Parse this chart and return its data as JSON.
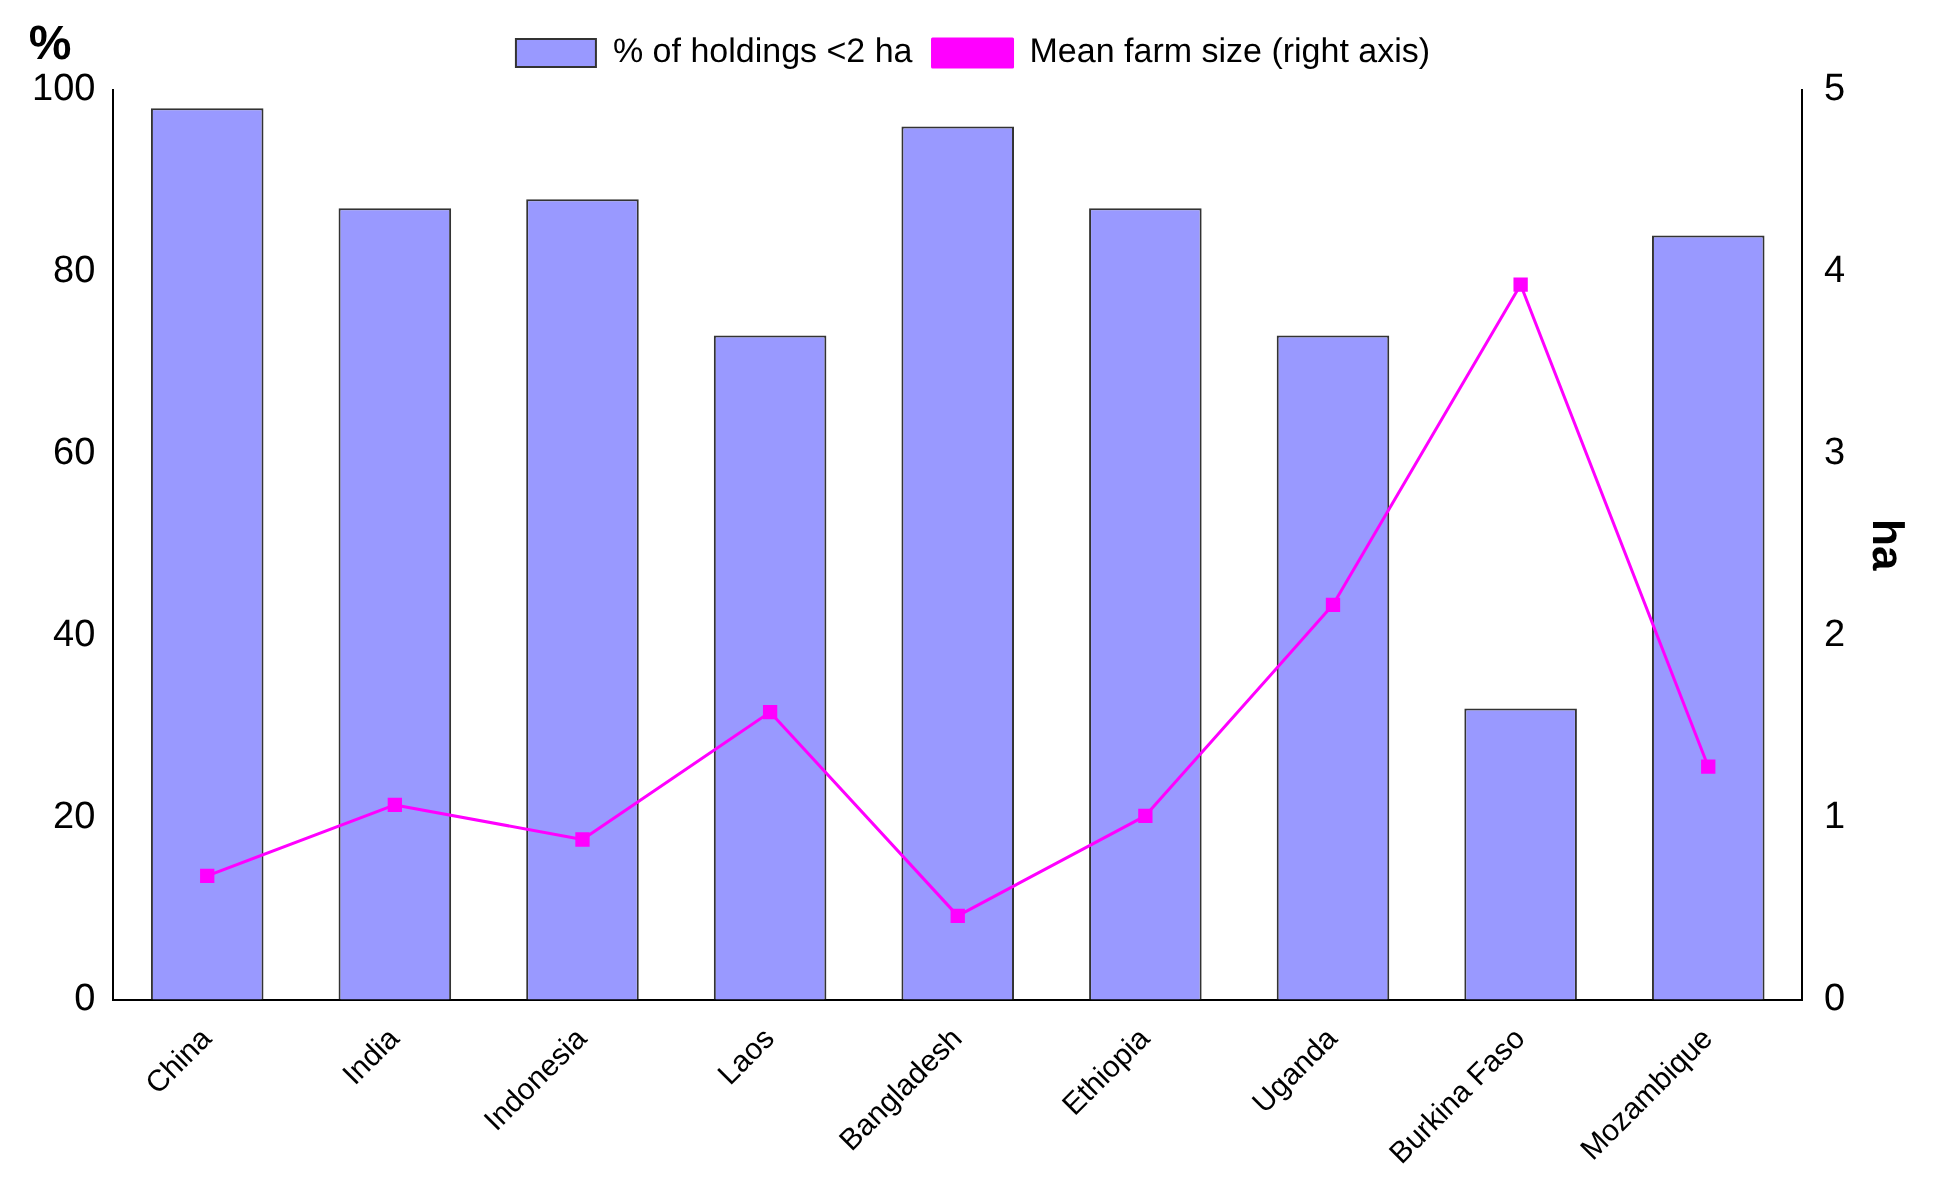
{
  "chart_data": {
    "type": "bar",
    "ylabel": "%",
    "y2label": "ha",
    "categories": [
      "China",
      "India",
      "Indonesia",
      "Laos",
      "Bangladesh",
      "Ethiopia",
      "Uganda",
      "Burkina Faso",
      "Mozambique"
    ],
    "series": [
      {
        "name": "% of holdings <2 ha",
        "color": "#9999ff",
        "values": [
          98,
          87,
          88,
          73,
          96,
          87,
          73,
          32,
          84
        ]
      },
      {
        "name": "Mean farm size (right axis)",
        "type": "line",
        "axis": "y2",
        "color": "#ff00ff",
        "values": [
          0.68,
          1.07,
          0.88,
          1.58,
          0.46,
          1.01,
          2.17,
          3.93,
          1.28
        ]
      }
    ],
    "ylim": [
      0,
      100
    ],
    "yticks": [
      0,
      20,
      40,
      60,
      80,
      100
    ],
    "y2lim": [
      0,
      5
    ],
    "y2ticks": [
      0,
      1,
      2,
      3,
      4,
      5
    ],
    "legend": "top",
    "grid": false,
    "marker": "square",
    "line_style": "solid"
  }
}
